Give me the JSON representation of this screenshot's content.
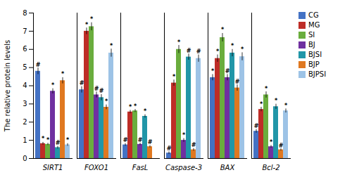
{
  "chart_data": {
    "type": "bar",
    "categories": [
      "SIRT1",
      "FOXO1",
      "FasL",
      "Caspase-3",
      "BAX",
      "Bcl-2"
    ],
    "series": [
      {
        "name": "CG",
        "color": "#4472C4",
        "values": [
          4.8,
          3.78,
          0.75,
          0.3,
          4.45,
          1.5
        ],
        "errors": [
          0.18,
          0.17,
          0.07,
          0.07,
          0.17,
          0.1
        ],
        "annotations": [
          "#",
          "#",
          "#",
          "#",
          "*",
          "#"
        ]
      },
      {
        "name": "MG",
        "color": "#BE2D27",
        "values": [
          0.82,
          7.0,
          2.56,
          4.15,
          5.5,
          2.7
        ],
        "errors": [
          0.07,
          0.18,
          0.09,
          0.17,
          0.2,
          0.12
        ],
        "annotations": [
          "*",
          "*",
          "*",
          "*",
          "*",
          "*"
        ]
      },
      {
        "name": "SI",
        "color": "#6AAD3D",
        "values": [
          0.78,
          7.25,
          2.62,
          6.0,
          6.65,
          3.5
        ],
        "errors": [
          0.06,
          0.22,
          0.08,
          0.22,
          0.23,
          0.17
        ],
        "annotations": [
          "*",
          "*",
          "*",
          "*",
          "*",
          "*"
        ]
      },
      {
        "name": "BJ",
        "color": "#7030A0",
        "values": [
          3.7,
          3.5,
          0.78,
          1.0,
          4.45,
          0.65
        ],
        "errors": [
          0.14,
          0.16,
          0.06,
          0.1,
          0.17,
          0.07
        ],
        "annotations": [
          "*",
          "#",
          "#",
          "*",
          "#",
          "*"
        ]
      },
      {
        "name": "BJSI",
        "color": "#2196A8",
        "values": [
          0.6,
          3.35,
          2.32,
          5.58,
          5.8,
          2.85
        ],
        "errors": [
          0.07,
          0.17,
          0.09,
          0.17,
          0.2,
          0.14
        ],
        "annotations": [
          "#",
          "#",
          "*",
          "#",
          "*",
          "*"
        ]
      },
      {
        "name": "BJP",
        "color": "#E07820",
        "values": [
          4.28,
          2.82,
          0.65,
          0.48,
          3.88,
          0.48
        ],
        "errors": [
          0.17,
          0.13,
          0.06,
          0.07,
          0.17,
          0.06
        ],
        "annotations": [
          "*",
          "*",
          "#",
          "#",
          "#",
          "#"
        ]
      },
      {
        "name": "BJPSI",
        "color": "#9DC3E6",
        "values": [
          0.75,
          5.8,
          0.0,
          5.5,
          5.6,
          2.62
        ],
        "errors": [
          0.07,
          0.22,
          0.0,
          0.2,
          0.22,
          0.11
        ],
        "annotations": [
          "*",
          "*",
          null,
          "#",
          "*",
          "*"
        ]
      }
    ],
    "ylabel": "The relative protein levels",
    "ylim": [
      0,
      8
    ],
    "yticks": [
      0,
      1,
      2,
      3,
      4,
      5,
      6,
      7,
      8
    ],
    "grid": false,
    "legend": "upper right"
  }
}
